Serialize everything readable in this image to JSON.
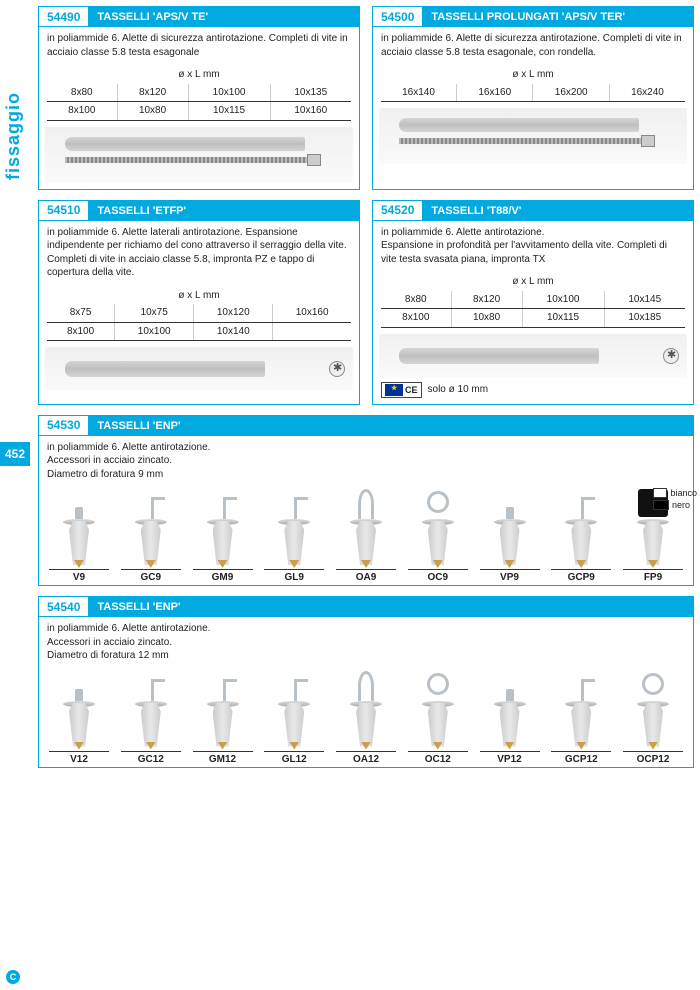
{
  "page": {
    "section": "fissaggio",
    "number": "452"
  },
  "colors": {
    "accent": "#00a9e0"
  },
  "panels": {
    "p1": {
      "code": "54490",
      "title": "TASSELLI 'APS/V TE'",
      "desc": "in poliammide 6. Alette di sicurezza antirotazione. Completi di vite in acciaio classe 5.8 testa esagonale",
      "unit": "ø x L mm",
      "rows": [
        [
          "8x80",
          "8x120",
          "10x100",
          "10x135"
        ],
        [
          "8x100",
          "10x80",
          "10x115",
          "10x160"
        ]
      ]
    },
    "p2": {
      "code": "54500",
      "title": "TASSELLI PROLUNGATI 'APS/V  TER'",
      "desc": "in poliammide 6. Alette di sicurezza antirotazione. Completi di vite in acciaio classe 5.8 testa esagonale, con rondella.",
      "unit": "ø x L mm",
      "rows": [
        [
          "16x140",
          "16x160",
          "16x200",
          "16x240"
        ]
      ]
    },
    "p3": {
      "code": "54510",
      "title": "TASSELLI 'ETFP'",
      "desc": "in poliammide 6. Alette laterali antirotazione. Espansione indipendente per richiamo del cono attraverso il serraggio della vite.\nCompleti di vite in acciaio classe 5.8, impronta PZ e tappo di copertura della vite.",
      "unit": "ø x L mm",
      "rows": [
        [
          "8x75",
          "10x75",
          "10x120",
          "10x160"
        ],
        [
          "8x100",
          "10x100",
          "10x140",
          ""
        ]
      ]
    },
    "p4": {
      "code": "54520",
      "title": "TASSELLI 'T88/V'",
      "desc": "in poliammide 6. Alette antirotazione.\nEspansione in profondità per l'avvitamento della vite. Completi di vite testa svasata piana, impronta TX",
      "unit": "ø x L mm",
      "rows": [
        [
          "8x80",
          "8x120",
          "10x100",
          "10x145"
        ],
        [
          "8x100",
          "10x80",
          "10x115",
          "10x185"
        ]
      ],
      "ce_note": "solo ø 10 mm"
    },
    "p5": {
      "code": "54530",
      "title": "TASSELLI 'ENP'",
      "desc": "in poliammide 6. Alette antirotazione.\nAccessori in acciaio zincato.\nDiametro di foratura 9 mm",
      "items": [
        "V9",
        "GC9",
        "GM9",
        "GL9",
        "OA9",
        "OC9",
        "VP9",
        "GCP9",
        "FP9"
      ],
      "legend": {
        "white": "bianco",
        "black": "nero"
      }
    },
    "p6": {
      "code": "54540",
      "title": "TASSELLI 'ENP'",
      "desc": "in poliammide 6. Alette antirotazione.\nAccessori in acciaio zincato.\nDiametro di foratura 12 mm",
      "items": [
        "V12",
        "GC12",
        "GM12",
        "GL12",
        "OA12",
        "OC12",
        "VP12",
        "GCP12",
        "OCP12"
      ]
    }
  }
}
